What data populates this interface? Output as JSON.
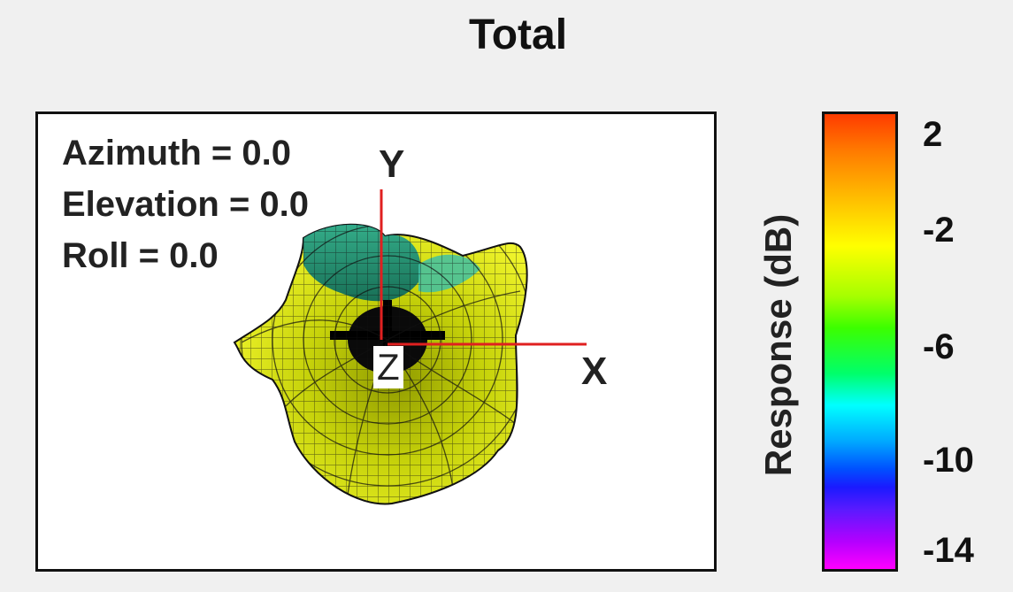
{
  "title": "Total",
  "view": {
    "azimuth": "Azimuth = 0.0",
    "elevation": "Elevation = 0.0",
    "roll": "Roll = 0.0"
  },
  "axes": {
    "x": "X",
    "y": "Y",
    "z": "Z"
  },
  "colorbar": {
    "title": "Response  (dB)",
    "ticks": [
      "2",
      "-2",
      "-6",
      "-10",
      "-14"
    ],
    "range_db": [
      -15,
      3
    ]
  },
  "colors": {
    "axis_line": "#e02020",
    "mesh_line": "#111111",
    "pattern_main": "#c9d21a",
    "pattern_shadow": "#2fb8a8"
  }
}
